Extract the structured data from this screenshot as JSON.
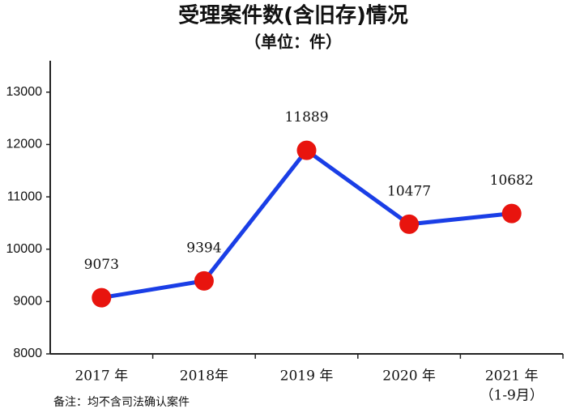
{
  "chart_data": {
    "type": "line",
    "title": "受理案件数(含旧存)情况",
    "subtitle": "（单位：件）",
    "categories": [
      "2017 年",
      "2018年",
      "2019 年",
      "2020 年",
      "2021 年"
    ],
    "category_note": "（1-9月）",
    "series": [
      {
        "name": "受理案件数",
        "color": "#1a3ee6",
        "marker_color": "#e8140e",
        "values": [
          9073,
          9394,
          11889,
          10477,
          10682
        ]
      }
    ],
    "ylim": [
      8000,
      13600
    ],
    "yticks": [
      8000,
      9000,
      10000,
      11000,
      12000,
      13000
    ],
    "footnote": "备注：均不含司法确认案件"
  }
}
